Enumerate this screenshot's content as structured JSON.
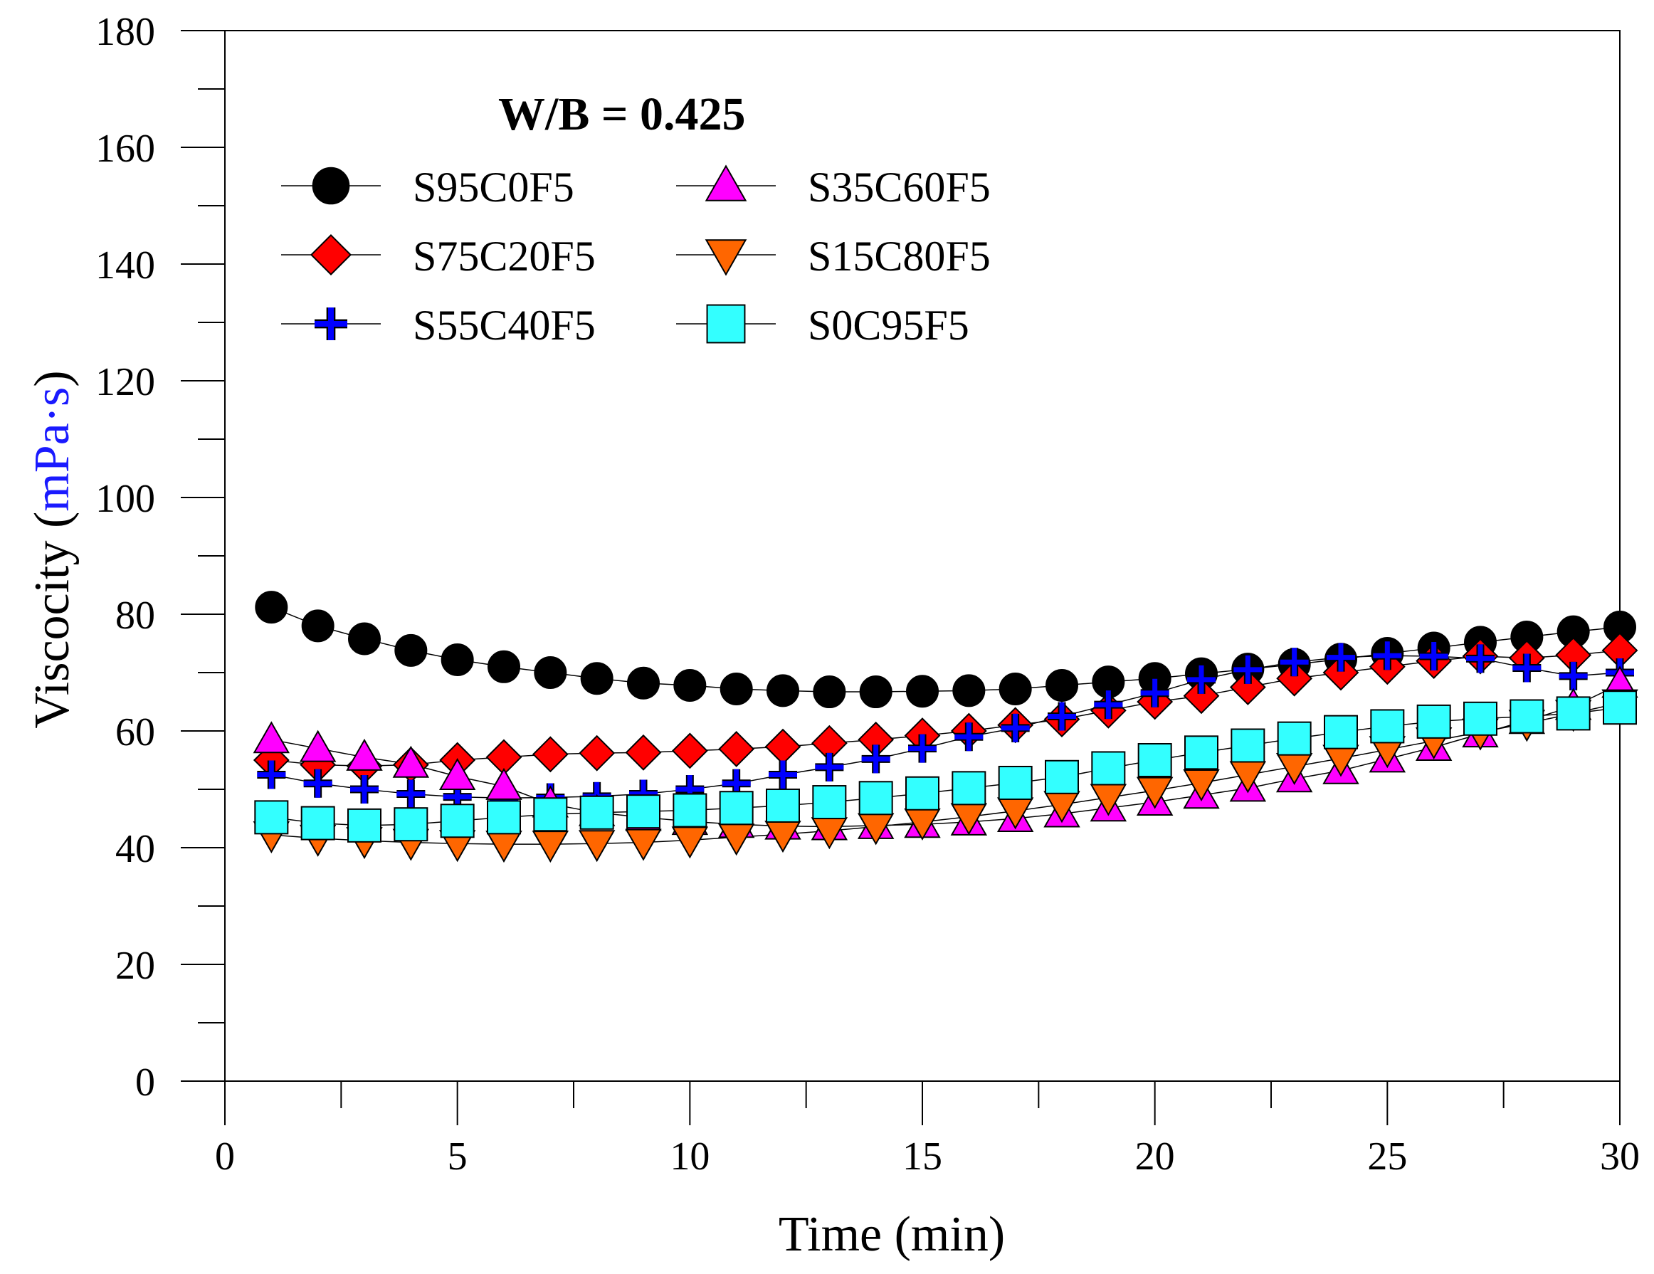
{
  "chart_data": {
    "type": "line",
    "title": "W/B = 0.425",
    "xlabel": "Time (min)",
    "ylabel_main": "Viscocity (",
    "ylabel_unit": "mPa·s",
    "ylabel_close": ")",
    "xlim": [
      0,
      30
    ],
    "ylim": [
      0,
      180
    ],
    "xticks": [
      0,
      5,
      10,
      15,
      20,
      25,
      30
    ],
    "yticks": [
      0,
      20,
      40,
      60,
      80,
      100,
      120,
      140,
      160,
      180
    ],
    "grid": false,
    "legend_position": "top-left",
    "unit_color": "#1a1aff",
    "x": [
      1,
      2,
      3,
      4,
      5,
      6,
      7,
      8,
      9,
      10,
      11,
      12,
      13,
      14,
      15,
      16,
      17,
      18,
      19,
      20,
      21,
      22,
      23,
      24,
      25,
      26,
      27,
      28,
      29,
      30
    ],
    "series": [
      {
        "name": "S95C0F5",
        "marker": "circle",
        "color": "#000000",
        "values": [
          81.2,
          78.0,
          75.8,
          73.8,
          72.2,
          71.0,
          70.0,
          69.0,
          68.2,
          67.8,
          67.2,
          66.9,
          66.7,
          66.7,
          66.8,
          66.9,
          67.2,
          67.8,
          68.4,
          69.0,
          69.8,
          70.6,
          71.4,
          72.3,
          73.3,
          74.2,
          75.2,
          76.1,
          77.0,
          77.8
        ]
      },
      {
        "name": "S75C20F5",
        "marker": "diamond",
        "color": "#ff0000",
        "values": [
          55.0,
          54.2,
          54.0,
          54.2,
          55.0,
          55.5,
          56.0,
          56.2,
          56.3,
          56.6,
          56.9,
          57.3,
          57.9,
          58.5,
          59.2,
          60.0,
          61.0,
          62.0,
          63.5,
          65.0,
          66.0,
          67.5,
          69.0,
          70.0,
          71.0,
          72.0,
          72.8,
          72.5,
          73.0,
          73.8
        ]
      },
      {
        "name": "S55C40F5",
        "marker": "cross",
        "color": "#0000ff",
        "values": [
          52.5,
          51.0,
          50.0,
          49.2,
          48.7,
          48.5,
          48.6,
          48.8,
          49.2,
          50.0,
          51.0,
          52.5,
          53.8,
          55.2,
          57.0,
          59.0,
          60.5,
          62.5,
          64.5,
          66.5,
          68.8,
          70.5,
          71.8,
          72.6,
          72.9,
          72.8,
          72.4,
          70.8,
          69.4,
          70.0
        ]
      },
      {
        "name": "S35C60F5",
        "marker": "triangle-up",
        "color": "#ff00ff",
        "values": [
          58.5,
          57.0,
          55.5,
          54.3,
          52.2,
          50.5,
          47.5,
          46.0,
          45.2,
          44.5,
          44.0,
          43.7,
          43.6,
          43.8,
          44.0,
          44.4,
          45.0,
          45.8,
          46.8,
          47.8,
          49.0,
          50.2,
          51.8,
          53.2,
          55.2,
          57.2,
          59.5,
          61.8,
          64.2,
          68.0
        ]
      },
      {
        "name": "S15C80F5",
        "marker": "triangle-down",
        "color": "#ff6600",
        "values": [
          42.2,
          41.6,
          41.2,
          40.9,
          40.7,
          40.6,
          40.6,
          40.7,
          40.9,
          41.3,
          41.8,
          42.3,
          42.9,
          43.6,
          44.4,
          45.3,
          46.3,
          47.4,
          48.6,
          49.8,
          51.1,
          52.5,
          53.9,
          55.3,
          56.8,
          58.3,
          59.8,
          61.3,
          63.0,
          64.8
        ]
      },
      {
        "name": "S0C95F5",
        "marker": "square",
        "color": "#33ffff",
        "values": [
          45.2,
          44.2,
          43.8,
          44.0,
          44.6,
          45.2,
          45.7,
          46.0,
          46.2,
          46.4,
          46.8,
          47.2,
          47.8,
          48.5,
          49.3,
          50.2,
          51.1,
          52.1,
          53.6,
          55.0,
          56.3,
          57.5,
          58.7,
          59.8,
          60.8,
          61.6,
          62.1,
          62.5,
          63.0,
          64.0
        ]
      }
    ]
  }
}
